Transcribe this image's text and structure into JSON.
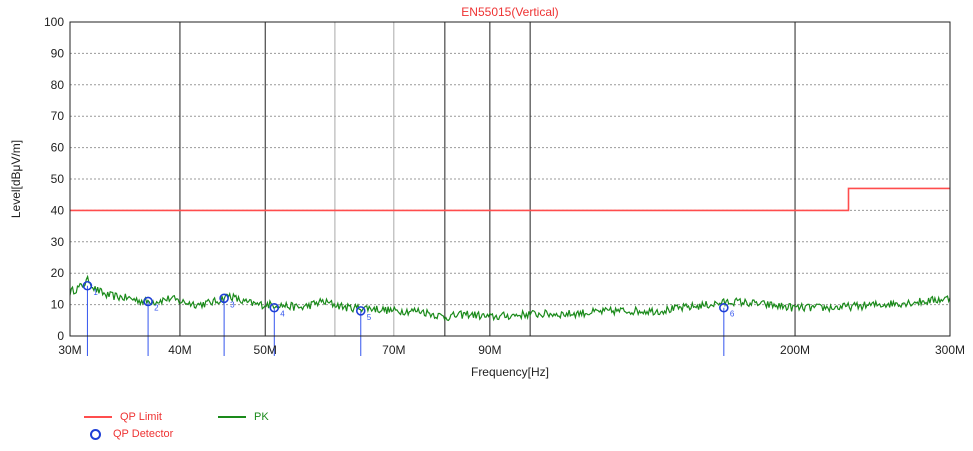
{
  "chart_data": {
    "type": "line",
    "title": "EN55015(Vertical)",
    "xlabel": "Frequency[Hz]",
    "ylabel": "Level[dBμV/m]",
    "x_scale": "log",
    "xlim": [
      30000000,
      300000000
    ],
    "ylim": [
      0,
      100
    ],
    "x_ticks": [
      {
        "value": 30000000,
        "label": "30M"
      },
      {
        "value": 40000000,
        "label": "40M"
      },
      {
        "value": 50000000,
        "label": "50M"
      },
      {
        "value": 70000000,
        "label": "70M"
      },
      {
        "value": 90000000,
        "label": "90M"
      },
      {
        "value": 200000000,
        "label": "200M"
      },
      {
        "value": 300000000,
        "label": "300M"
      }
    ],
    "x_major_gridlines": [
      40000000,
      50000000,
      80000000,
      90000000,
      100000000,
      200000000
    ],
    "x_minor_gridlines": [
      60000000,
      70000000
    ],
    "y_ticks": [
      0,
      10,
      20,
      30,
      40,
      50,
      60,
      70,
      80,
      90,
      100
    ],
    "grid": true,
    "legend_position": "bottom-left",
    "series": [
      {
        "name": "QP Limit",
        "color": "#ff4d4d",
        "style": "step",
        "x": [
          30000000,
          230000000,
          230000000,
          300000000
        ],
        "y": [
          40,
          40,
          47,
          47
        ]
      },
      {
        "name": "PK",
        "color": "#1a8a1a",
        "style": "line",
        "x": [
          30000000,
          31000000,
          31500000,
          32000000,
          33000000,
          35000000,
          36500000,
          37500000,
          39000000,
          40000000,
          42000000,
          44000000,
          45500000,
          47000000,
          49000000,
          51500000,
          55000000,
          58000000,
          62000000,
          65000000,
          70000000,
          75000000,
          80000000,
          85000000,
          90000000,
          100000000,
          110000000,
          125000000,
          140000000,
          160000000,
          170000000,
          185000000,
          200000000,
          220000000,
          250000000,
          280000000,
          300000000
        ],
        "y": [
          14,
          16,
          18,
          15,
          13,
          12,
          11,
          11,
          12,
          11,
          10,
          11,
          13,
          11,
          10,
          10,
          9,
          11,
          9,
          9,
          8,
          8,
          6,
          7,
          6,
          7,
          7,
          8,
          8,
          10,
          11,
          10,
          9,
          9,
          10,
          11,
          12
        ]
      },
      {
        "name": "QP Detector",
        "color": "#1f3fd6",
        "style": "markers",
        "x": [
          31400000,
          36800000,
          44900000,
          51200000,
          64200000,
          166000000
        ],
        "y": [
          16,
          11,
          12,
          9,
          8,
          9
        ],
        "labels": [
          "1",
          "2",
          "3",
          "4",
          "5",
          "6"
        ]
      }
    ]
  }
}
